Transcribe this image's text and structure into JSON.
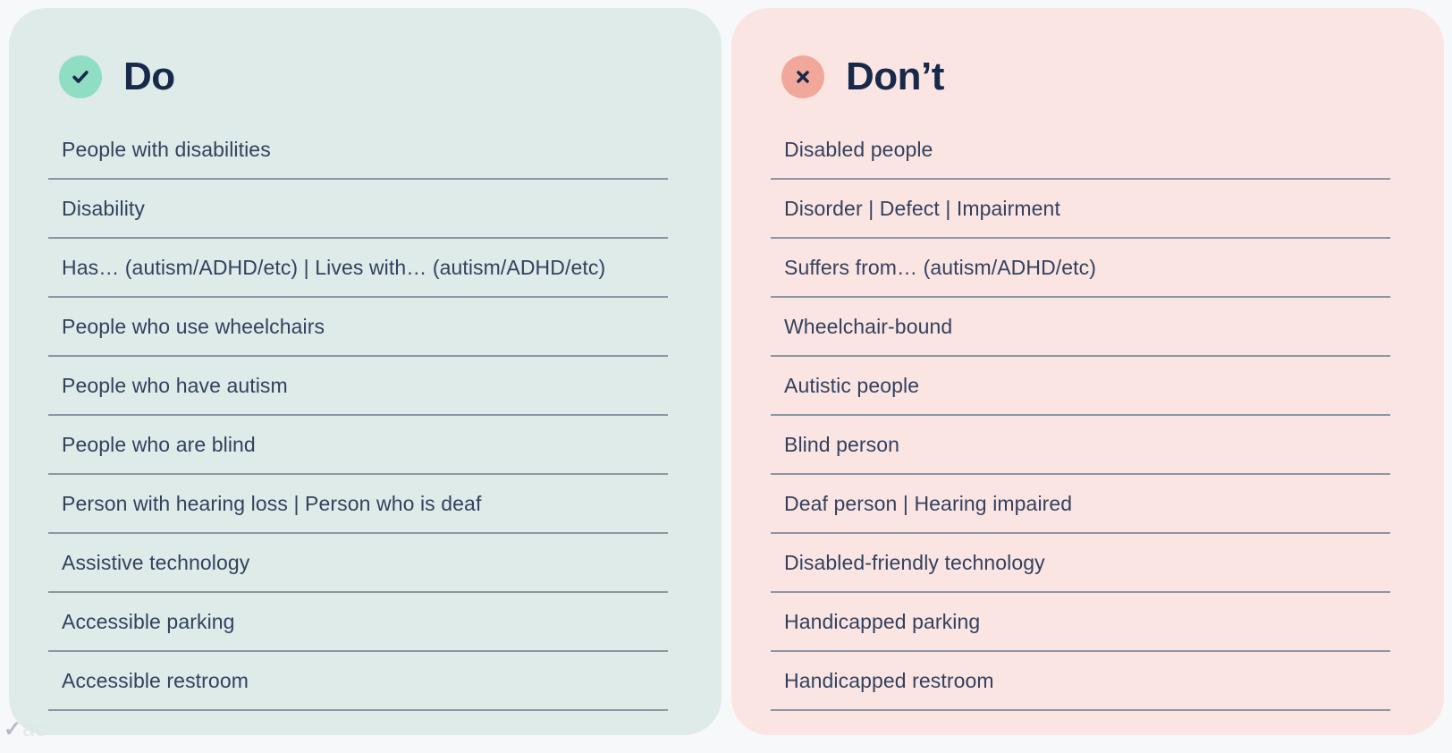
{
  "page": {
    "background_color": "#f7f8fa"
  },
  "watermark": {
    "glyph": "✓",
    "text": "ac"
  },
  "colors": {
    "do_card_bg": "#deebe9",
    "dont_card_bg": "#fbe5e3",
    "do_badge": "#8fdec4",
    "dont_badge": "#f1a89a",
    "title_text": "#18294a",
    "row_text": "#33415e",
    "divider": "#8b97a2"
  },
  "cards": [
    {
      "title": "Do",
      "icon": "check",
      "items": [
        "People with disabilities",
        "Disability",
        "Has… (autism/ADHD/etc) | Lives with… (autism/ADHD/etc)",
        "People who use wheelchairs",
        "People who have autism",
        "People who are blind",
        "Person with hearing loss | Person who is deaf",
        "Assistive technology",
        "Accessible parking",
        "Accessible restroom"
      ]
    },
    {
      "title": "Don’t",
      "icon": "cross",
      "items": [
        "Disabled people",
        "Disorder | Defect | Impairment",
        "Suffers from… (autism/ADHD/etc)",
        "Wheelchair-bound",
        "Autistic people",
        "Blind person",
        "Deaf person | Hearing impaired",
        "Disabled-friendly technology",
        "Handicapped parking",
        "Handicapped restroom"
      ]
    }
  ]
}
